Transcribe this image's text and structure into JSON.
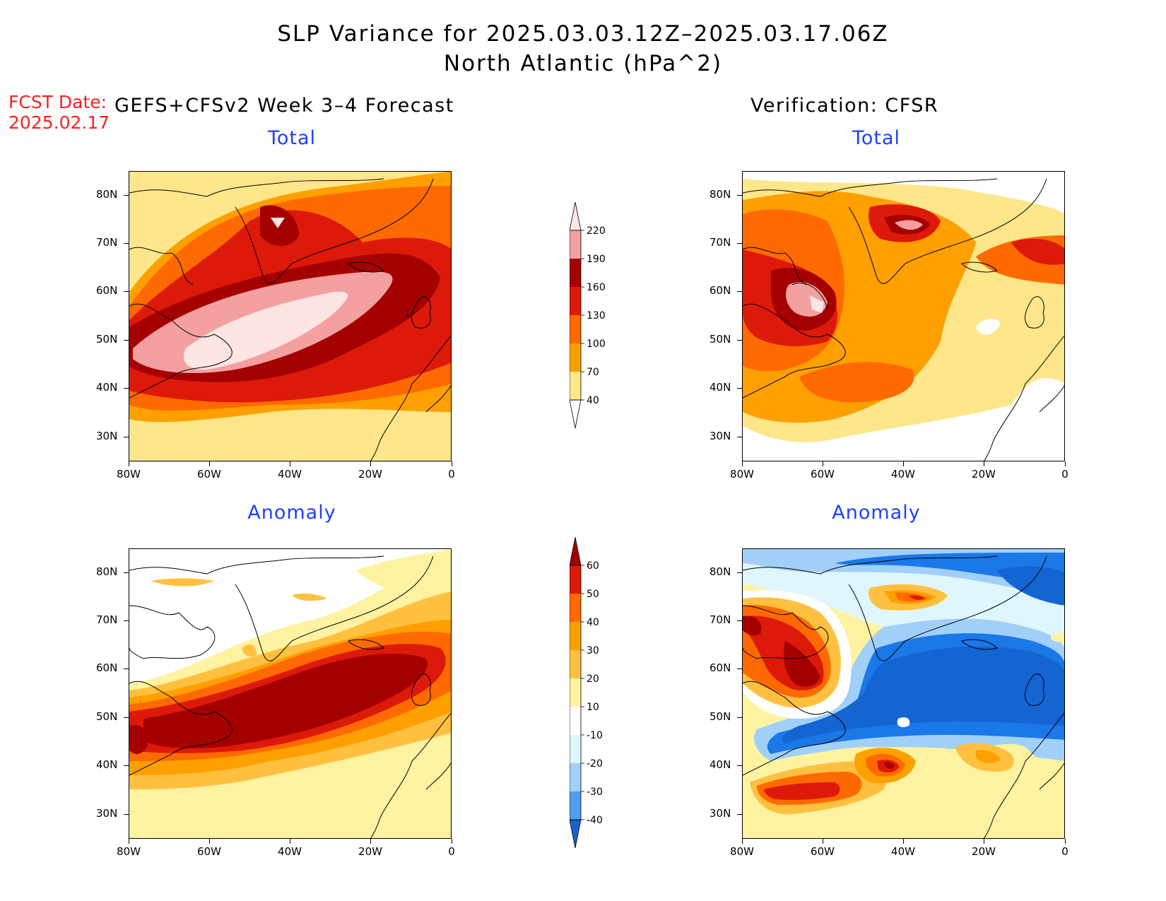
{
  "title": {
    "line1": "SLP Variance for 2025.03.03.12Z–2025.03.17.06Z",
    "line2": "North Atlantic (hPa^2)"
  },
  "fcst": {
    "label": "FCST Date:",
    "date": "2025.02.17"
  },
  "forecast_header": "GEFS+CFSv2 Week 3–4 Forecast",
  "verification_header": "Verification: CFSR",
  "panels": {
    "fc_total_title": "Total",
    "ver_total_title": "Total",
    "fc_anom_title": "Anomaly",
    "ver_anom_title": "Anomaly"
  },
  "axes": {
    "lat_labels": [
      "80N",
      "70N",
      "60N",
      "50N",
      "40N",
      "30N"
    ],
    "lon_labels": [
      "80W",
      "60W",
      "40W",
      "20W",
      "0"
    ]
  },
  "colorbars": {
    "total": {
      "labels": [
        "220",
        "190",
        "160",
        "130",
        "100",
        "70",
        "40"
      ],
      "colors": [
        "#ffe4e4",
        "#f4a0a0",
        "#a50000",
        "#dd1a0a",
        "#ff6a00",
        "#ffa000",
        "#ffe68a"
      ]
    },
    "anomaly": {
      "labels": [
        "60",
        "50",
        "40",
        "30",
        "20",
        "10",
        "-10",
        "-20",
        "-30",
        "-40"
      ],
      "colors": [
        "#a50000",
        "#dd1a0a",
        "#ff6a00",
        "#ffa000",
        "#ffc040",
        "#fff2a0",
        "#ffffff",
        "#dff6ff",
        "#a0d0f8",
        "#4f9cf0",
        "#1a78e8",
        "#1464d2"
      ]
    }
  }
}
